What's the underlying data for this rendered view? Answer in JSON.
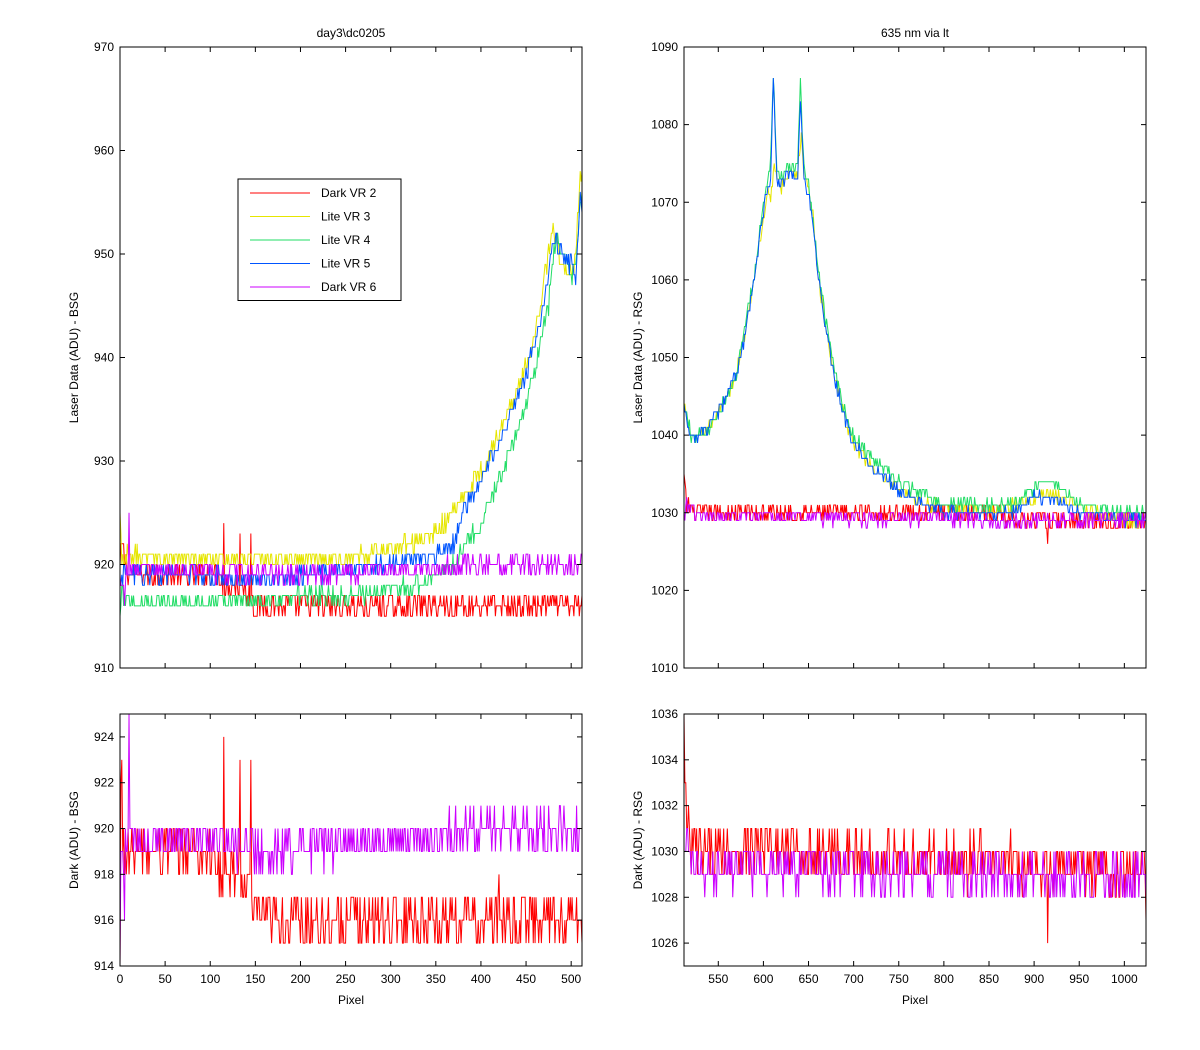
{
  "chart_data": [
    {
      "id": "tl",
      "type": "line",
      "title": "day3\\dc0205",
      "xlabel": "",
      "ylabel": "Laser Data (ADU) - BSG",
      "xlim": [
        0,
        512
      ],
      "ylim": [
        910,
        970
      ],
      "xticks": [
        0,
        50,
        100,
        150,
        200,
        250,
        300,
        350,
        400,
        450,
        500
      ],
      "yticks": [
        910,
        920,
        930,
        940,
        950,
        960,
        970
      ],
      "show_xticklabels": false,
      "legend": {
        "placement": "upper-left-inset",
        "entries": [
          "Dark VR 2",
          "Lite VR 3",
          "Lite VR 4",
          "Lite VR 5",
          "Dark VR 6"
        ]
      },
      "series": [
        {
          "name": "Dark VR 2",
          "color": "#ff0000",
          "x": [
            0,
            2,
            10,
            50,
            100,
            110,
            115,
            130,
            145,
            150,
            160,
            200,
            250,
            300,
            350,
            400,
            450,
            500,
            512
          ],
          "y": [
            920,
            922,
            919,
            919,
            919,
            919,
            918,
            918,
            917,
            916,
            916,
            916,
            916,
            916,
            916,
            916,
            916,
            916,
            916
          ],
          "noise": 1.2,
          "spikes": [
            [
              115,
              924
            ],
            [
              133,
              923
            ],
            [
              145,
              923
            ]
          ]
        },
        {
          "name": "Lite VR 3",
          "color": "#e6e600",
          "x": [
            0,
            2,
            10,
            50,
            100,
            150,
            200,
            250,
            300,
            320,
            340,
            360,
            380,
            400,
            420,
            440,
            460,
            475,
            480,
            485,
            490,
            500,
            505,
            510,
            512
          ],
          "y": [
            925,
            920,
            921,
            920.5,
            920.5,
            920.5,
            920.5,
            920.5,
            921.5,
            922,
            922.5,
            924,
            926.5,
            929,
            932.5,
            937,
            942,
            950,
            953,
            951,
            949,
            948,
            950,
            957,
            958
          ],
          "noise": 0.8,
          "spikes": []
        },
        {
          "name": "Lite VR 4",
          "color": "#22dd66",
          "x": [
            0,
            2,
            10,
            50,
            100,
            150,
            200,
            250,
            300,
            330,
            350,
            370,
            380,
            400,
            420,
            440,
            460,
            475,
            480,
            485,
            490,
            500,
            505,
            510,
            512
          ],
          "y": [
            915,
            917,
            916.5,
            916.5,
            916.5,
            916.5,
            916.8,
            917,
            917.5,
            918,
            919,
            920,
            921.5,
            924,
            928,
            932.5,
            939,
            945,
            950,
            952,
            950,
            948,
            949,
            954,
            956
          ],
          "noise": 0.8,
          "spikes": []
        },
        {
          "name": "Lite VR 5",
          "color": "#0055ff",
          "x": [
            0,
            2,
            10,
            50,
            100,
            150,
            200,
            250,
            300,
            350,
            370,
            380,
            400,
            420,
            440,
            460,
            475,
            480,
            485,
            490,
            500,
            505,
            510,
            512
          ],
          "y": [
            918,
            919,
            919,
            919,
            919,
            918.5,
            919,
            919.5,
            920,
            921,
            922,
            925,
            928,
            932,
            936,
            941,
            948,
            952,
            951,
            950,
            949,
            947,
            955,
            954
          ],
          "noise": 0.8,
          "spikes": []
        },
        {
          "name": "Dark VR 6",
          "color": "#cc00ff",
          "x": [
            0,
            2,
            10,
            50,
            100,
            150,
            200,
            250,
            300,
            350,
            380,
            400,
            450,
            500,
            512
          ],
          "y": [
            919,
            918,
            919.5,
            919.5,
            919.5,
            919,
            919,
            919.3,
            919.5,
            919.5,
            920,
            920,
            920,
            920,
            920
          ],
          "noise": 1.0,
          "spikes": [
            [
              10,
              925
            ],
            [
              5,
              916
            ]
          ]
        }
      ]
    },
    {
      "id": "tr",
      "type": "line",
      "title": "635 nm via lt",
      "xlabel": "",
      "ylabel": "Laser Data (ADU) - RSG",
      "xlim": [
        512,
        1024
      ],
      "ylim": [
        1010,
        1090
      ],
      "xticks": [
        550,
        600,
        650,
        700,
        750,
        800,
        850,
        900,
        950,
        1000
      ],
      "yticks": [
        1010,
        1020,
        1030,
        1040,
        1050,
        1060,
        1070,
        1080,
        1090
      ],
      "show_xticklabels": false,
      "series": [
        {
          "name": "Dark VR 2",
          "color": "#ff0000",
          "x": [
            512,
            515,
            525,
            550,
            600,
            650,
            700,
            750,
            800,
            850,
            900,
            950,
            1000,
            1024
          ],
          "y": [
            1035,
            1031,
            1030,
            1030,
            1030,
            1030,
            1030,
            1030,
            1030,
            1030,
            1029,
            1029,
            1029,
            1029
          ],
          "noise": 1.2,
          "spikes": [
            [
              915,
              1026
            ]
          ]
        },
        {
          "name": "Lite VR 3",
          "color": "#e6e600",
          "x": [
            512,
            520,
            530,
            540,
            550,
            560,
            570,
            580,
            590,
            600,
            605,
            608,
            612,
            615,
            620,
            625,
            630,
            635,
            638,
            642,
            645,
            650,
            655,
            660,
            670,
            680,
            690,
            700,
            720,
            750,
            780,
            800,
            850,
            880,
            900,
            920,
            950,
            1000,
            1024
          ],
          "y": [
            1044,
            1040,
            1040,
            1041,
            1043,
            1045,
            1048,
            1053,
            1060,
            1068,
            1071,
            1070,
            1075,
            1073,
            1072,
            1073,
            1074,
            1073,
            1074,
            1079,
            1073,
            1072,
            1068,
            1061,
            1053,
            1047,
            1042,
            1039,
            1036,
            1033,
            1031,
            1031,
            1030,
            1031,
            1032,
            1032.5,
            1030.5,
            1029,
            1029
          ],
          "noise": 0.7,
          "spikes": []
        },
        {
          "name": "Lite VR 4",
          "color": "#22dd66",
          "x": [
            512,
            520,
            530,
            540,
            550,
            560,
            570,
            580,
            590,
            600,
            605,
            608,
            611,
            615,
            620,
            625,
            630,
            635,
            638,
            641,
            645,
            650,
            655,
            660,
            670,
            680,
            690,
            700,
            720,
            750,
            780,
            800,
            850,
            880,
            900,
            910,
            920,
            950,
            1000,
            1024
          ],
          "y": [
            1044,
            1040,
            1040,
            1041,
            1043,
            1045,
            1048,
            1054,
            1061,
            1070,
            1073,
            1076,
            1087,
            1074,
            1073,
            1074,
            1074,
            1074,
            1075,
            1086,
            1074,
            1072,
            1068,
            1062,
            1054,
            1048,
            1043,
            1040,
            1037,
            1034,
            1032,
            1031,
            1031,
            1031,
            1033,
            1034,
            1034,
            1031,
            1030,
            1030
          ],
          "noise": 0.7,
          "spikes": []
        },
        {
          "name": "Lite VR 5",
          "color": "#0055ff",
          "x": [
            512,
            520,
            530,
            540,
            550,
            560,
            570,
            580,
            590,
            600,
            605,
            608,
            611,
            615,
            620,
            625,
            630,
            635,
            638,
            641,
            645,
            650,
            655,
            660,
            670,
            680,
            690,
            700,
            720,
            750,
            780,
            800,
            850,
            880,
            900,
            920,
            950,
            1000,
            1024
          ],
          "y": [
            1044,
            1039,
            1040,
            1041,
            1043,
            1045,
            1048,
            1053,
            1060,
            1069,
            1072,
            1073,
            1086,
            1073,
            1072,
            1073,
            1074,
            1073,
            1074,
            1083,
            1073,
            1071,
            1067,
            1061,
            1053,
            1047,
            1042,
            1039,
            1036,
            1033,
            1031,
            1030,
            1030,
            1030,
            1032,
            1032,
            1030,
            1029,
            1029
          ],
          "noise": 0.7,
          "spikes": []
        },
        {
          "name": "Dark VR 6",
          "color": "#cc00ff",
          "x": [
            512,
            515,
            525,
            550,
            600,
            650,
            700,
            750,
            800,
            850,
            900,
            950,
            1000,
            1024
          ],
          "y": [
            1030,
            1031,
            1029.5,
            1029.5,
            1029.5,
            1029.5,
            1029.3,
            1029.3,
            1029.3,
            1029,
            1029,
            1029,
            1029,
            1029
          ],
          "noise": 1.0,
          "spikes": []
        }
      ]
    },
    {
      "id": "bl",
      "type": "line",
      "title": "",
      "xlabel": "Pixel",
      "ylabel": "Dark (ADU) - BSG",
      "xlim": [
        0,
        512
      ],
      "ylim": [
        914,
        925
      ],
      "xticks": [
        0,
        50,
        100,
        150,
        200,
        250,
        300,
        350,
        400,
        450,
        500
      ],
      "yticks": [
        914,
        916,
        918,
        920,
        922,
        924
      ],
      "show_xticklabels": true,
      "series": [
        {
          "name": "Dark VR 2",
          "color": "#ff0000",
          "x": [
            0,
            1,
            3,
            10,
            50,
            100,
            110,
            115,
            130,
            145,
            150,
            155,
            160,
            200,
            250,
            300,
            350,
            400,
            450,
            500,
            512
          ],
          "y": [
            914,
            922,
            919,
            919,
            919,
            919,
            918,
            918,
            918,
            917,
            916,
            916,
            916,
            916,
            916,
            916,
            916,
            916,
            916,
            916,
            916
          ],
          "noise": 1.1,
          "spikes": [
            [
              115,
              924
            ],
            [
              133,
              923
            ],
            [
              145,
              923
            ],
            [
              2,
              923
            ],
            [
              420,
              918
            ]
          ]
        },
        {
          "name": "Dark VR 6",
          "color": "#cc00ff",
          "x": [
            0,
            2,
            10,
            50,
            100,
            150,
            200,
            250,
            300,
            350,
            380,
            400,
            450,
            500,
            512
          ],
          "y": [
            918,
            919,
            919.5,
            919.5,
            919.5,
            919,
            919.3,
            919.3,
            919.5,
            919.5,
            920,
            920,
            920,
            920,
            920
          ],
          "noise": 0.9,
          "spikes": [
            [
              10,
              925
            ],
            [
              5,
              916
            ],
            [
              0,
              914
            ]
          ]
        }
      ]
    },
    {
      "id": "br",
      "type": "line",
      "title": "",
      "xlabel": "Pixel",
      "ylabel": "Dark (ADU) - RSG",
      "xlim": [
        512,
        1024
      ],
      "ylim": [
        1025,
        1036
      ],
      "xticks": [
        550,
        600,
        650,
        700,
        750,
        800,
        850,
        900,
        950,
        1000
      ],
      "yticks": [
        1026,
        1028,
        1030,
        1032,
        1034,
        1036
      ],
      "show_xticklabels": true,
      "series": [
        {
          "name": "Dark VR 2",
          "color": "#ff0000",
          "x": [
            512,
            513,
            515,
            520,
            530,
            550,
            600,
            650,
            700,
            750,
            800,
            850,
            900,
            950,
            1000,
            1024
          ],
          "y": [
            1035,
            1033,
            1031,
            1030,
            1030,
            1030,
            1030,
            1030,
            1029.8,
            1029.7,
            1029.6,
            1029.5,
            1029.4,
            1029.3,
            1029.2,
            1029.2
          ],
          "noise": 1.1,
          "spikes": [
            [
              915,
              1026
            ],
            [
              1024,
              1027
            ]
          ]
        },
        {
          "name": "Dark VR 6",
          "color": "#cc00ff",
          "x": [
            512,
            515,
            520,
            530,
            550,
            600,
            650,
            700,
            750,
            800,
            850,
            900,
            950,
            1000,
            1024
          ],
          "y": [
            1030,
            1031,
            1029.5,
            1029.3,
            1029.3,
            1029.3,
            1029.2,
            1029,
            1029,
            1029,
            1028.9,
            1028.9,
            1028.9,
            1029,
            1029
          ],
          "noise": 0.9,
          "spikes": []
        }
      ]
    }
  ]
}
